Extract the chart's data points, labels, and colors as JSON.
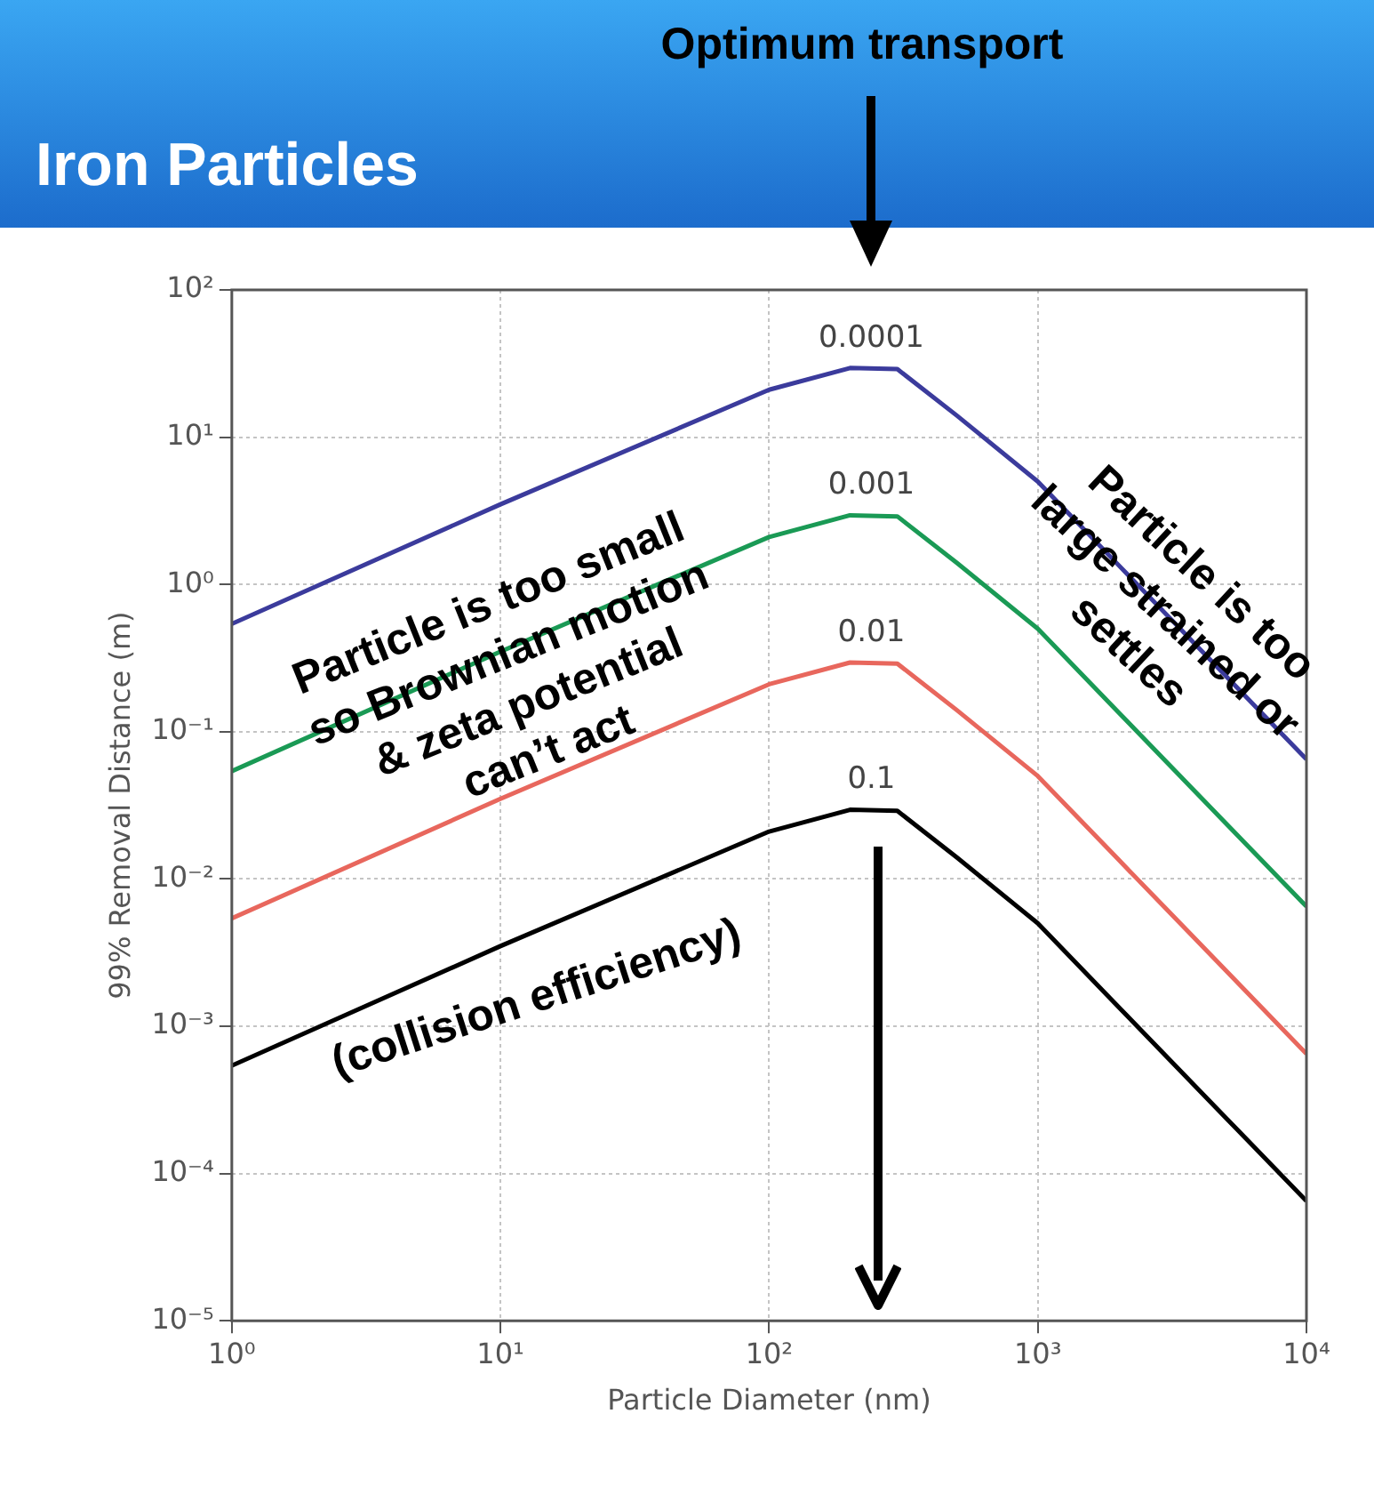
{
  "chart_data": {
    "type": "line",
    "title": "Iron Particles",
    "xlabel": "Particle Diameter (nm)",
    "ylabel": "99% Removal Distance (m)",
    "x": [
      1,
      10,
      100,
      200,
      300,
      500,
      1000,
      2000,
      5000,
      10000
    ],
    "series": [
      {
        "name": "0.0001",
        "color": "#3b3b9c",
        "values": [
          0.54,
          3.5,
          21,
          29.5,
          29,
          14,
          5,
          1.35,
          0.24,
          0.065
        ]
      },
      {
        "name": "0.001",
        "color": "#1a9a55",
        "values": [
          0.054,
          0.35,
          2.1,
          2.95,
          2.9,
          1.4,
          0.5,
          0.135,
          0.024,
          0.0065
        ]
      },
      {
        "name": "0.01",
        "color": "#e8675d",
        "values": [
          0.0054,
          0.035,
          0.21,
          0.295,
          0.29,
          0.14,
          0.05,
          0.0135,
          0.0024,
          0.00065
        ]
      },
      {
        "name": "0.1",
        "color": "#000000",
        "values": [
          0.00054,
          0.0035,
          0.021,
          0.0295,
          0.029,
          0.014,
          0.005,
          0.00135,
          0.00024,
          6.5e-05
        ]
      }
    ],
    "log": "xy",
    "xlim": [
      1,
      10000
    ],
    "ylim": [
      1e-05,
      100
    ],
    "xticks": [
      {
        "value": 1,
        "label": "10⁰"
      },
      {
        "value": 10,
        "label": "10¹"
      },
      {
        "value": 100,
        "label": "10²"
      },
      {
        "value": 1000,
        "label": "10³"
      },
      {
        "value": 10000,
        "label": "10⁴"
      }
    ],
    "yticks": [
      {
        "value": 1e-05,
        "label": "10⁻⁵"
      },
      {
        "value": 0.0001,
        "label": "10⁻⁴"
      },
      {
        "value": 0.001,
        "label": "10⁻³"
      },
      {
        "value": 0.01,
        "label": "10⁻²"
      },
      {
        "value": 0.1,
        "label": "10⁻¹"
      },
      {
        "value": 1,
        "label": "10⁰"
      },
      {
        "value": 10,
        "label": "10¹"
      },
      {
        "value": 100,
        "label": "10²"
      }
    ],
    "grid": true,
    "legend": false,
    "marker": "none",
    "line_style": "solid",
    "annotations": [
      "Optimum transport",
      "Particle is too small\nso Brownian motion\n& zeta potential\ncan’t act",
      "Particle is too\nlarge strained or\nsettles",
      "(collision efficiency)"
    ]
  }
}
